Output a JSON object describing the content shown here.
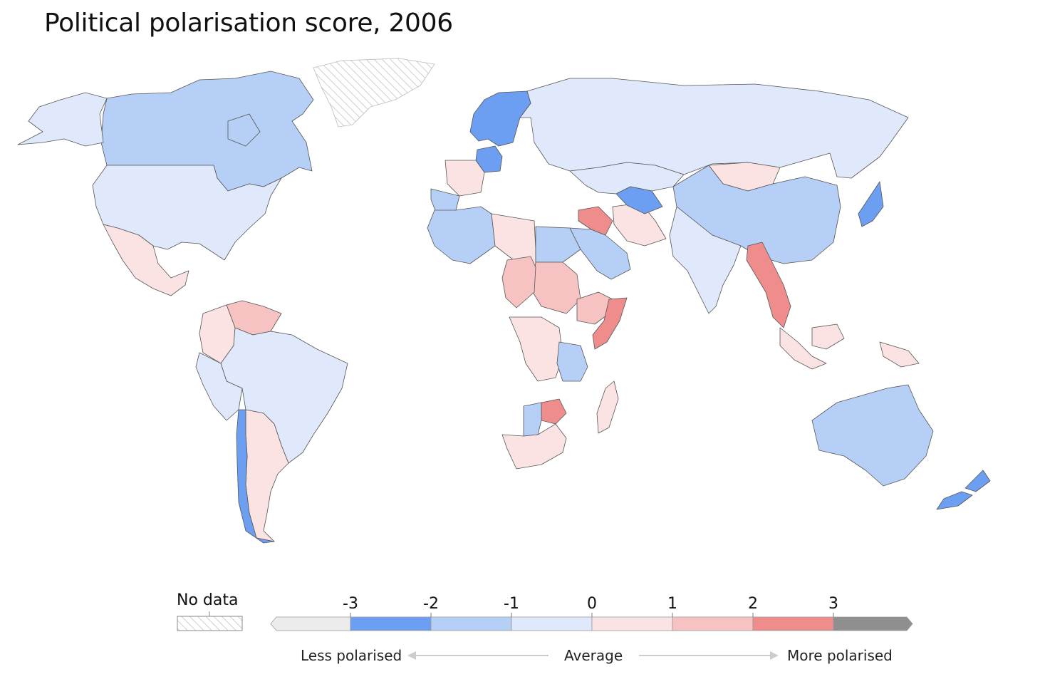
{
  "title": "Political polarisation score, 2006",
  "legend": {
    "no_data_label": "No data",
    "ticks": [
      "-3",
      "-2",
      "-1",
      "0",
      "1",
      "2",
      "3"
    ],
    "bins": [
      {
        "from": null,
        "to": -3,
        "color": "#ececec"
      },
      {
        "from": -3,
        "to": -2,
        "color": "#6c9ef2"
      },
      {
        "from": -2,
        "to": -1,
        "color": "#b5cff6"
      },
      {
        "from": -1,
        "to": 0,
        "color": "#dfe9fb"
      },
      {
        "from": 0,
        "to": 1,
        "color": "#fbe3e3"
      },
      {
        "from": 1,
        "to": 2,
        "color": "#f6c2c2"
      },
      {
        "from": 2,
        "to": 3,
        "color": "#ef8c8c"
      },
      {
        "from": 3,
        "to": null,
        "color": "#8f8f8f"
      }
    ],
    "less_label": "Less polarised",
    "average_label": "Average",
    "more_label": "More polarised"
  },
  "colors": {
    "no_data_hatch": "#cfcfcf",
    "border": "#444444"
  },
  "regions": [
    {
      "name": "Canada",
      "score": -1.5
    },
    {
      "name": "United States",
      "score": -0.5
    },
    {
      "name": "Alaska",
      "score": -0.5
    },
    {
      "name": "Greenland",
      "score": null
    },
    {
      "name": "Mexico",
      "score": 0.5
    },
    {
      "name": "Venezuela",
      "score": 1.5
    },
    {
      "name": "Colombia",
      "score": 0.5
    },
    {
      "name": "Brazil",
      "score": -0.5
    },
    {
      "name": "Peru",
      "score": -0.5
    },
    {
      "name": "Argentina",
      "score": 0.5
    },
    {
      "name": "Chile",
      "score": -2.5
    },
    {
      "name": "Russia",
      "score": -0.5
    },
    {
      "name": "Scandinavia",
      "score": -2.5
    },
    {
      "name": "Germany",
      "score": -2.5
    },
    {
      "name": "France",
      "score": 0.5
    },
    {
      "name": "Spain",
      "score": -1.5
    },
    {
      "name": "Algeria",
      "score": -1.5
    },
    {
      "name": "Libya",
      "score": 0.5
    },
    {
      "name": "Egypt",
      "score": -1.5
    },
    {
      "name": "Saudi Arabia",
      "score": -1.5
    },
    {
      "name": "Iraq",
      "score": 2.5
    },
    {
      "name": "Iran",
      "score": 0.5
    },
    {
      "name": "Sudan",
      "score": 1.5
    },
    {
      "name": "Chad",
      "score": 1.5
    },
    {
      "name": "Ethiopia",
      "score": 1.5
    },
    {
      "name": "Somalia",
      "score": 2.5
    },
    {
      "name": "DR Congo",
      "score": 0.5
    },
    {
      "name": "Tanzania",
      "score": -1.5
    },
    {
      "name": "Zimbabwe",
      "score": 2.5
    },
    {
      "name": "Botswana",
      "score": -1.5
    },
    {
      "name": "South Africa",
      "score": 0.5
    },
    {
      "name": "Madagascar",
      "score": 0.5
    },
    {
      "name": "Kazakhstan",
      "score": -0.5
    },
    {
      "name": "Uzbekistan",
      "score": -2.5
    },
    {
      "name": "Mongolia",
      "score": 0.5
    },
    {
      "name": "China",
      "score": -1.5
    },
    {
      "name": "India",
      "score": -0.5
    },
    {
      "name": "Myanmar",
      "score": 2.5
    },
    {
      "name": "Japan",
      "score": -2.5
    },
    {
      "name": "Indonesia",
      "score": 0.5
    },
    {
      "name": "Australia",
      "score": -1.5
    },
    {
      "name": "New Zealand",
      "score": -2.5
    }
  ]
}
